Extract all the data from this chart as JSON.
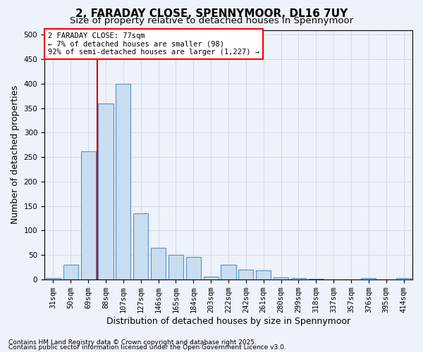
{
  "title1": "2, FARADAY CLOSE, SPENNYMOOR, DL16 7UY",
  "title2": "Size of property relative to detached houses in Spennymoor",
  "xlabel": "Distribution of detached houses by size in Spennymoor",
  "ylabel": "Number of detached properties",
  "categories": [
    "31sqm",
    "50sqm",
    "69sqm",
    "88sqm",
    "107sqm",
    "127sqm",
    "146sqm",
    "165sqm",
    "184sqm",
    "203sqm",
    "222sqm",
    "242sqm",
    "261sqm",
    "280sqm",
    "299sqm",
    "318sqm",
    "337sqm",
    "357sqm",
    "376sqm",
    "395sqm",
    "414sqm"
  ],
  "values": [
    2,
    30,
    262,
    360,
    400,
    135,
    65,
    50,
    45,
    5,
    30,
    20,
    18,
    4,
    2,
    1,
    0,
    0,
    2,
    0,
    2
  ],
  "bar_color": "#c9ddf0",
  "bar_edge_color": "#5a8fc0",
  "vline_x_index": 2.5,
  "annotation_text": "2 FARADAY CLOSE: 77sqm\n← 7% of detached houses are smaller (98)\n92% of semi-detached houses are larger (1,227) →",
  "vline_color": "#cc0000",
  "ylim": [
    0,
    510
  ],
  "yticks": [
    0,
    50,
    100,
    150,
    200,
    250,
    300,
    350,
    400,
    450,
    500
  ],
  "footnote1": "Contains HM Land Registry data © Crown copyright and database right 2025.",
  "footnote2": "Contains public sector information licensed under the Open Government Licence v3.0.",
  "bg_color": "#eef2fa",
  "grid_color": "#c8cfe0",
  "title_fontsize": 11,
  "subtitle_fontsize": 9.5,
  "axis_label_fontsize": 9,
  "tick_fontsize": 7.5,
  "footnote_fontsize": 6.5
}
